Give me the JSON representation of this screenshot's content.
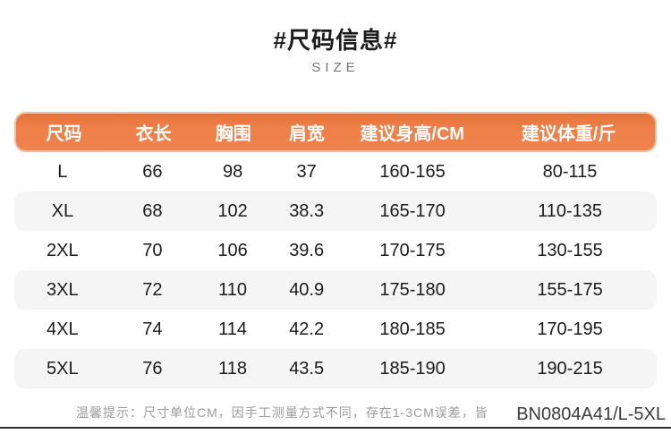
{
  "header": {
    "title": "#尺码信息#",
    "subtitle": "SIZE"
  },
  "chart_data": {
    "type": "table",
    "title": "#尺码信息#",
    "subtitle": "SIZE",
    "columns": [
      "尺码",
      "衣长",
      "胸围",
      "肩宽",
      "建议身高/CM",
      "建议体重/斤"
    ],
    "rows": [
      [
        "L",
        "66",
        "98",
        "37",
        "160-165",
        "80-115"
      ],
      [
        "XL",
        "68",
        "102",
        "38.3",
        "165-170",
        "110-135"
      ],
      [
        "2XL",
        "70",
        "106",
        "39.6",
        "170-175",
        "130-155"
      ],
      [
        "3XL",
        "72",
        "110",
        "40.9",
        "175-180",
        "155-175"
      ],
      [
        "4XL",
        "74",
        "114",
        "42.2",
        "180-185",
        "170-195"
      ],
      [
        "5XL",
        "76",
        "118",
        "43.5",
        "185-190",
        "190-215"
      ]
    ]
  },
  "footer": {
    "note": "温馨提示：尺寸单位CM，因手工测量方式不同，存在1-3CM误差，皆",
    "product_code": "BN0804A41/L-5XL"
  },
  "colors": {
    "header_bg": "#ee7f47",
    "header_border": "#f6bd96",
    "row_alt_bg": "#f5f5f5",
    "text": "#1b1b1b",
    "note": "#9b9b9b"
  }
}
